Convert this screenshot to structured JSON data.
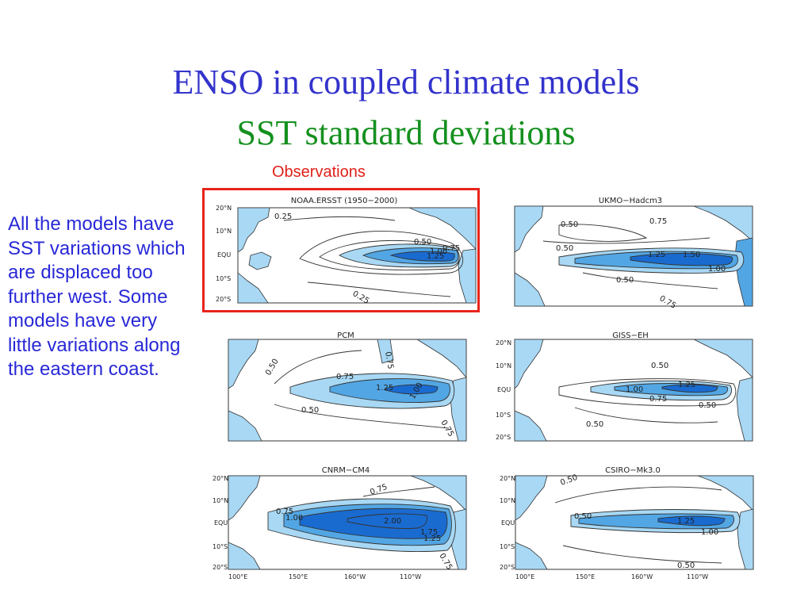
{
  "title_line1": "ENSO in coupled climate models",
  "title_line2": "SST standard deviations",
  "observations_label": "Observations",
  "side_text": "All the models have SST variations which are displaced too further west. Some models have very little variations along the eastern coast.",
  "lat_ticks": [
    "20°N",
    "10°N",
    "EQU",
    "10°S",
    "20°S"
  ],
  "lon_ticks": [
    "100°E",
    "150°E",
    "160°W",
    "110°W"
  ],
  "colors": {
    "title_blue": "#3333cc",
    "title_green": "#14901e",
    "highlight_red": "#e8241c",
    "land": "#a8d8f4",
    "mid": "#52a6e4",
    "deep": "#1a6bd0"
  },
  "panels": [
    {
      "title": "NOAA.ERSST (1950−2000)",
      "labels": [
        "0.25",
        "0.50",
        "0.75",
        "1.00",
        "1.25",
        "0.25"
      ]
    },
    {
      "title": "UKMO−Hadcm3",
      "labels": [
        "0.75",
        "0.50",
        "0.50",
        "1.25",
        "1.50",
        "1.00",
        "0.75",
        "0.50"
      ]
    },
    {
      "title": "PCM",
      "labels": [
        "0.50",
        "0.75",
        "0.75",
        "1.25",
        "1.00",
        "0.50",
        "0.75"
      ]
    },
    {
      "title": "GISS−EH",
      "labels": [
        "0.50",
        "1.00",
        "1.25",
        "0.75",
        "0.50",
        "0.50"
      ]
    },
    {
      "title": "CNRM−CM4",
      "labels": [
        "0.75",
        "0.75",
        "1.00",
        "2.00",
        "1.75",
        "1.25",
        "0.75"
      ]
    },
    {
      "title": "CSIRO−Mk3.0",
      "labels": [
        "0.50",
        "0.50",
        "1.25",
        "1.00",
        "0.50"
      ]
    }
  ]
}
